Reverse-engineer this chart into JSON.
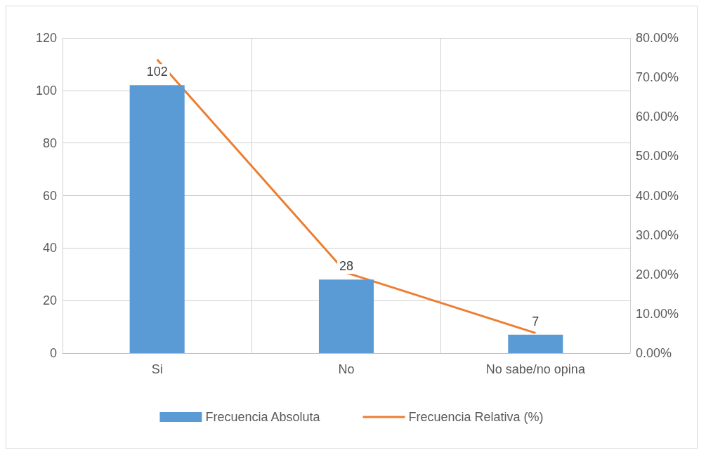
{
  "chart_data": {
    "type": "bar",
    "categories": [
      "Si",
      "No",
      "No sabe/no opina"
    ],
    "series": [
      {
        "name": "Frecuencia Absoluta",
        "color": "#5b9bd5",
        "values": [
          102,
          28,
          7
        ],
        "value_labels": [
          "102",
          "28",
          "7"
        ]
      },
      {
        "name": "Frecuencia Relativa (%)",
        "type": "line",
        "axis": "y2",
        "color": "#ed7d31",
        "values": [
          74.5,
          20.4,
          5.1
        ],
        "marker": "none"
      }
    ],
    "ylim": [
      0,
      120
    ],
    "yticks": [
      0,
      20,
      40,
      60,
      80,
      100,
      120
    ],
    "y2lim": [
      0,
      80
    ],
    "y2ticks": [
      {
        "value": 0,
        "label": "0.00%"
      },
      {
        "value": 10,
        "label": "10.00%"
      },
      {
        "value": 20,
        "label": "20.00%"
      },
      {
        "value": 30,
        "label": "30.00%"
      },
      {
        "value": 40,
        "label": "40.00%"
      },
      {
        "value": 50,
        "label": "50.00%"
      },
      {
        "value": 60,
        "label": "60.00%"
      },
      {
        "value": 70,
        "label": "70.00%"
      },
      {
        "value": 80,
        "label": "80.00%"
      }
    ],
    "grid": true,
    "legend": "bottom"
  }
}
